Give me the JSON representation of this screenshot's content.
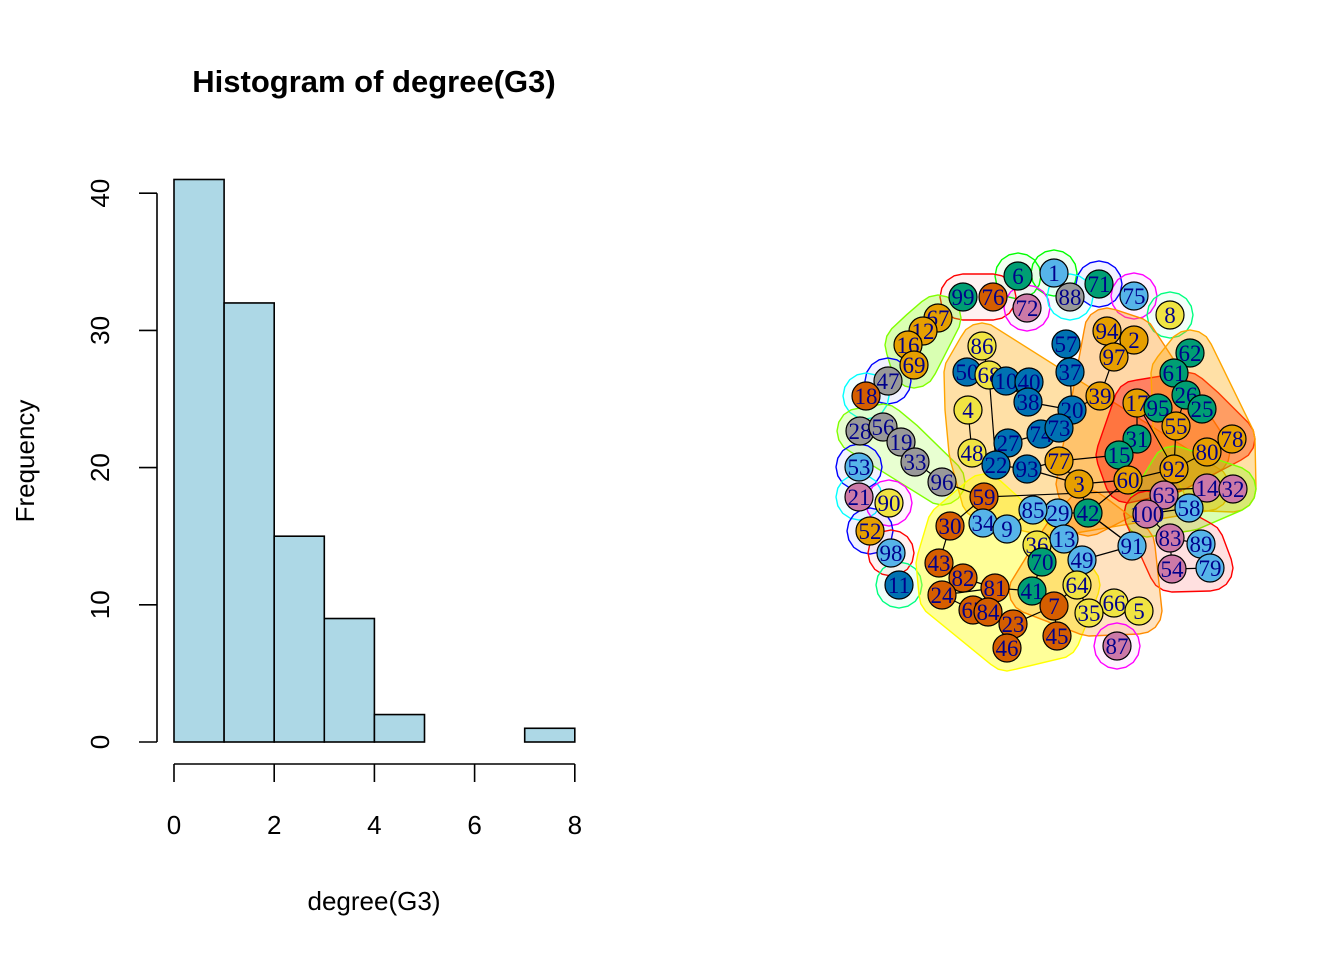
{
  "chart_data": [
    {
      "type": "bar",
      "title": "Histogram of degree(G3)",
      "xlabel": "degree(G3)",
      "ylabel": "Frequency",
      "bins": [
        [
          0,
          1
        ],
        [
          1,
          2
        ],
        [
          2,
          3
        ],
        [
          3,
          4
        ],
        [
          4,
          5
        ],
        [
          5,
          6
        ],
        [
          6,
          7
        ],
        [
          7,
          8
        ]
      ],
      "values": [
        41,
        32,
        15,
        9,
        2,
        0,
        0,
        1
      ],
      "bar_color": "#add8e6",
      "xlim": [
        0,
        8
      ],
      "ylim": [
        0,
        41
      ],
      "xticks": [
        "0",
        "2",
        "4",
        "6",
        "8"
      ],
      "yticks": [
        "0",
        "10",
        "20",
        "30",
        "40"
      ],
      "grid": false
    }
  ],
  "network": {
    "nodes": [
      {
        "label": "6",
        "color": "#009e73"
      },
      {
        "label": "1",
        "color": "#56b4e9"
      },
      {
        "label": "71",
        "color": "#009e73"
      },
      {
        "label": "75",
        "color": "#56b4e9"
      },
      {
        "label": "99",
        "color": "#009e73"
      },
      {
        "label": "76",
        "color": "#d55e00"
      },
      {
        "label": "72",
        "color": "#cc79a7"
      },
      {
        "label": "88",
        "color": "#999999"
      },
      {
        "label": "8",
        "color": "#f0e442"
      },
      {
        "label": "67",
        "color": "#e69f00"
      },
      {
        "label": "12",
        "color": "#e69f00"
      },
      {
        "label": "16",
        "color": "#e69f00"
      },
      {
        "label": "69",
        "color": "#e69f00"
      },
      {
        "label": "47",
        "color": "#999999"
      },
      {
        "label": "18",
        "color": "#d55e00"
      },
      {
        "label": "28",
        "color": "#999999"
      },
      {
        "label": "56",
        "color": "#999999"
      },
      {
        "label": "19",
        "color": "#999999"
      },
      {
        "label": "53",
        "color": "#56b4e9"
      },
      {
        "label": "33",
        "color": "#999999"
      },
      {
        "label": "96",
        "color": "#999999"
      },
      {
        "label": "21",
        "color": "#cc79a7"
      },
      {
        "label": "90",
        "color": "#f0e442"
      },
      {
        "label": "52",
        "color": "#e69f00"
      },
      {
        "label": "98",
        "color": "#56b4e9"
      },
      {
        "label": "11",
        "color": "#0072b2"
      },
      {
        "label": "86",
        "color": "#f0e442"
      },
      {
        "label": "57",
        "color": "#0072b2"
      },
      {
        "label": "94",
        "color": "#e69f00"
      },
      {
        "label": "2",
        "color": "#e69f00"
      },
      {
        "label": "97",
        "color": "#e69f00"
      },
      {
        "label": "62",
        "color": "#009e73"
      },
      {
        "label": "61",
        "color": "#009e73"
      },
      {
        "label": "50",
        "color": "#0072b2"
      },
      {
        "label": "68",
        "color": "#f0e442"
      },
      {
        "label": "10",
        "color": "#0072b2"
      },
      {
        "label": "40",
        "color": "#0072b2"
      },
      {
        "label": "37",
        "color": "#0072b2"
      },
      {
        "label": "38",
        "color": "#0072b2"
      },
      {
        "label": "39",
        "color": "#e69f00"
      },
      {
        "label": "17",
        "color": "#e69f00"
      },
      {
        "label": "95",
        "color": "#009e73"
      },
      {
        "label": "26",
        "color": "#009e73"
      },
      {
        "label": "25",
        "color": "#009e73"
      },
      {
        "label": "4",
        "color": "#f0e442"
      },
      {
        "label": "20",
        "color": "#0072b2"
      },
      {
        "label": "74",
        "color": "#0072b2"
      },
      {
        "label": "73",
        "color": "#0072b2"
      },
      {
        "label": "55",
        "color": "#e69f00"
      },
      {
        "label": "78",
        "color": "#e69f00"
      },
      {
        "label": "48",
        "color": "#f0e442"
      },
      {
        "label": "27",
        "color": "#0072b2"
      },
      {
        "label": "31",
        "color": "#009e73"
      },
      {
        "label": "22",
        "color": "#0072b2"
      },
      {
        "label": "93",
        "color": "#0072b2"
      },
      {
        "label": "77",
        "color": "#e69f00"
      },
      {
        "label": "15",
        "color": "#009e73"
      },
      {
        "label": "80",
        "color": "#e69f00"
      },
      {
        "label": "60",
        "color": "#e69f00"
      },
      {
        "label": "92",
        "color": "#e69f00"
      },
      {
        "label": "3",
        "color": "#e69f00"
      },
      {
        "label": "14",
        "color": "#cc79a7"
      },
      {
        "label": "32",
        "color": "#cc79a7"
      },
      {
        "label": "59",
        "color": "#d55e00"
      },
      {
        "label": "63",
        "color": "#cc79a7"
      },
      {
        "label": "100",
        "color": "#cc79a7"
      },
      {
        "label": "58",
        "color": "#56b4e9"
      },
      {
        "label": "29",
        "color": "#56b4e9"
      },
      {
        "label": "85",
        "color": "#56b4e9"
      },
      {
        "label": "42",
        "color": "#009e73"
      },
      {
        "label": "34",
        "color": "#56b4e9"
      },
      {
        "label": "9",
        "color": "#56b4e9"
      },
      {
        "label": "30",
        "color": "#d55e00"
      },
      {
        "label": "36",
        "color": "#f0e442"
      },
      {
        "label": "13",
        "color": "#56b4e9"
      },
      {
        "label": "91",
        "color": "#56b4e9"
      },
      {
        "label": "83",
        "color": "#cc79a7"
      },
      {
        "label": "89",
        "color": "#56b4e9"
      },
      {
        "label": "70",
        "color": "#009e73"
      },
      {
        "label": "49",
        "color": "#56b4e9"
      },
      {
        "label": "43",
        "color": "#d55e00"
      },
      {
        "label": "82",
        "color": "#d55e00"
      },
      {
        "label": "54",
        "color": "#cc79a7"
      },
      {
        "label": "79",
        "color": "#56b4e9"
      },
      {
        "label": "24",
        "color": "#d55e00"
      },
      {
        "label": "81",
        "color": "#d55e00"
      },
      {
        "label": "41",
        "color": "#009e73"
      },
      {
        "label": "64",
        "color": "#f0e442"
      },
      {
        "label": "65",
        "color": "#d55e00"
      },
      {
        "label": "84",
        "color": "#d55e00"
      },
      {
        "label": "7",
        "color": "#d55e00"
      },
      {
        "label": "66",
        "color": "#f0e442"
      },
      {
        "label": "5",
        "color": "#f0e442"
      },
      {
        "label": "35",
        "color": "#f0e442"
      },
      {
        "label": "23",
        "color": "#d55e00"
      },
      {
        "label": "45",
        "color": "#d55e00"
      },
      {
        "label": "46",
        "color": "#d55e00"
      },
      {
        "label": "87",
        "color": "#cc79a7"
      }
    ],
    "hull_colors": [
      "#00ff00",
      "#ff0000",
      "#ff00ff",
      "#0000ff",
      "#00ffff",
      "#00ff80",
      "#80ff00",
      "#ffa500",
      "#ffff00",
      "#ff8c00"
    ]
  }
}
